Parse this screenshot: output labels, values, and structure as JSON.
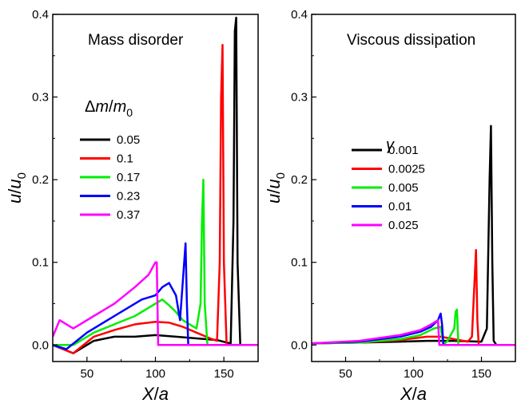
{
  "chart_data": [
    {
      "type": "line",
      "title": "Mass disorder",
      "xlabel": "X/a",
      "ylabel": "u/u0",
      "xlim": [
        25,
        175
      ],
      "ylim": [
        -0.02,
        0.4
      ],
      "xticks": [
        "50",
        "100",
        "150"
      ],
      "yticks": [
        "0.0",
        "0.1",
        "0.2",
        "0.3",
        "0.4"
      ],
      "legend": {
        "title": "Δm/m0",
        "placement": "middle-left"
      },
      "series": [
        {
          "name": "0.05",
          "color": "#000000",
          "x": [
            25,
            40,
            55,
            70,
            85,
            100,
            115,
            130,
            145,
            152,
            155,
            157,
            158,
            159,
            160,
            162,
            175
          ],
          "y": [
            0.0,
            -0.01,
            0.005,
            0.01,
            0.01,
            0.012,
            0.01,
            0.008,
            0.006,
            0.003,
            0.002,
            0.15,
            0.38,
            0.396,
            0.1,
            0.0,
            0.0
          ]
        },
        {
          "name": "0.1",
          "color": "#ff0000",
          "x": [
            25,
            40,
            55,
            70,
            85,
            100,
            110,
            120,
            130,
            140,
            145,
            147,
            148,
            149,
            150,
            152,
            175
          ],
          "y": [
            0.0,
            -0.01,
            0.01,
            0.018,
            0.025,
            0.028,
            0.027,
            0.022,
            0.015,
            0.008,
            0.005,
            0.1,
            0.3,
            0.363,
            0.1,
            0.0,
            0.0
          ]
        },
        {
          "name": "0.17",
          "color": "#00ee00",
          "x": [
            25,
            40,
            55,
            70,
            85,
            95,
            100,
            105,
            110,
            115,
            120,
            125,
            130,
            133,
            134,
            135,
            136,
            138,
            175
          ],
          "y": [
            0.0,
            0.0,
            0.015,
            0.025,
            0.035,
            0.045,
            0.05,
            0.055,
            0.048,
            0.04,
            0.03,
            0.025,
            0.02,
            0.05,
            0.15,
            0.2,
            0.05,
            0.0,
            0.0
          ]
        },
        {
          "name": "0.23",
          "color": "#0000ff",
          "x": [
            25,
            35,
            50,
            65,
            80,
            90,
            100,
            105,
            110,
            115,
            118,
            121,
            122,
            123,
            124,
            126,
            175
          ],
          "y": [
            0.0,
            -0.005,
            0.015,
            0.03,
            0.045,
            0.055,
            0.06,
            0.07,
            0.075,
            0.06,
            0.03,
            0.1,
            0.123,
            0.05,
            0.0,
            0.0,
            0.0
          ]
        },
        {
          "name": "0.37",
          "color": "#ff00ff",
          "x": [
            25,
            30,
            40,
            55,
            70,
            85,
            95,
            100,
            101,
            102,
            175
          ],
          "y": [
            0.01,
            0.03,
            0.02,
            0.035,
            0.05,
            0.07,
            0.085,
            0.1,
            0.1,
            0.0,
            0.0
          ]
        }
      ]
    },
    {
      "type": "line",
      "title": "Viscous dissipation",
      "xlabel": "X/a",
      "ylabel": "u/u0",
      "xlim": [
        25,
        175
      ],
      "ylim": [
        -0.02,
        0.4
      ],
      "xticks": [
        "50",
        "100",
        "150"
      ],
      "yticks": [
        "0.0",
        "0.1",
        "0.2",
        "0.3",
        "0.4"
      ],
      "legend": {
        "title": "γ",
        "placement": "middle-left"
      },
      "series": [
        {
          "name": "0.001",
          "color": "#000000",
          "x": [
            25,
            60,
            90,
            110,
            130,
            150,
            154,
            156,
            157,
            158,
            159,
            161,
            175
          ],
          "y": [
            0.002,
            0.003,
            0.004,
            0.005,
            0.005,
            0.004,
            0.02,
            0.2,
            0.265,
            0.1,
            0.005,
            0.0,
            0.0
          ]
        },
        {
          "name": "0.0025",
          "color": "#ff0000",
          "x": [
            25,
            60,
            90,
            110,
            120,
            130,
            140,
            143,
            145,
            146,
            147,
            148,
            150,
            175
          ],
          "y": [
            0.002,
            0.003,
            0.006,
            0.01,
            0.01,
            0.007,
            0.004,
            0.01,
            0.08,
            0.115,
            0.03,
            0.0,
            0.0,
            0.0
          ]
        },
        {
          "name": "0.005",
          "color": "#00ee00",
          "x": [
            25,
            60,
            90,
            105,
            115,
            120,
            122,
            125,
            130,
            131,
            132,
            133,
            135,
            175
          ],
          "y": [
            0.002,
            0.003,
            0.007,
            0.012,
            0.02,
            0.022,
            0.0,
            0.005,
            0.02,
            0.04,
            0.043,
            0.0,
            0.0,
            0.0
          ]
        },
        {
          "name": "0.01",
          "color": "#0000ff",
          "x": [
            25,
            60,
            90,
            105,
            113,
            118,
            120,
            121,
            122,
            124,
            175
          ],
          "y": [
            0.002,
            0.004,
            0.01,
            0.016,
            0.022,
            0.03,
            0.038,
            0.025,
            0.0,
            0.0,
            0.0
          ]
        },
        {
          "name": "0.025",
          "color": "#ff00ff",
          "x": [
            25,
            60,
            90,
            105,
            112,
            116,
            118,
            119,
            120,
            175
          ],
          "y": [
            0.002,
            0.005,
            0.012,
            0.018,
            0.024,
            0.028,
            0.03,
            0.0,
            0.0,
            0.0
          ]
        }
      ]
    }
  ]
}
